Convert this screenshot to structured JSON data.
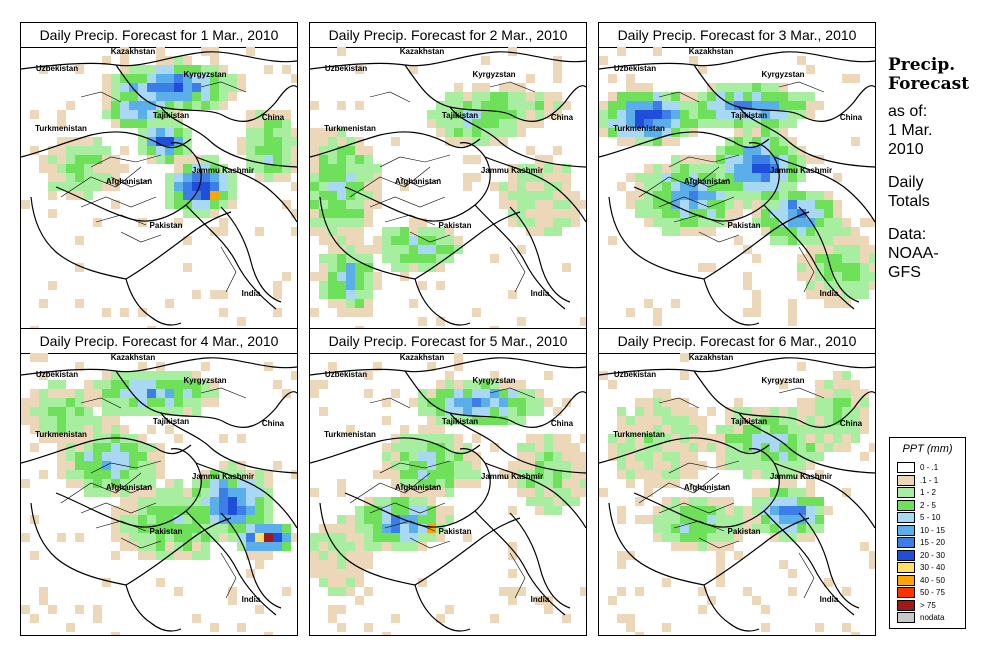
{
  "title_prefix": "Daily Precip. Forecast for",
  "panels": [
    {
      "date": "1 Mar., 2010",
      "title": "Daily Precip. Forecast for  1 Mar., 2010"
    },
    {
      "date": "2 Mar., 2010",
      "title": "Daily Precip. Forecast for  2 Mar., 2010"
    },
    {
      "date": "3 Mar., 2010",
      "title": "Daily Precip. Forecast for  3 Mar., 2010"
    },
    {
      "date": "4 Mar., 2010",
      "title": "Daily Precip. Forecast for  4 Mar., 2010"
    },
    {
      "date": "5 Mar., 2010",
      "title": "Daily Precip. Forecast for  5 Mar., 2010"
    },
    {
      "date": "6 Mar., 2010",
      "title": "Daily Precip. Forecast for  6 Mar., 2010"
    }
  ],
  "map_labels": {
    "kazakhstan": "Kazakhstan",
    "uzbekistan": "Uzbekistan",
    "kyrgyzstan": "Kyrgyzstan",
    "tajikistan": "Tajikistan",
    "turkmenistan": "Turkmenistan",
    "china": "China",
    "afghanistan": "Afghanistan",
    "jammu_kashmir": "Jammu Kashmir",
    "pakistan": "Pakistan",
    "india": "India"
  },
  "sidebar": {
    "title_line1": "Precip.",
    "title_line2": "Forecast",
    "asof_line1": "as of:",
    "asof_line2": "1 Mar.",
    "asof_line3": "2010",
    "period_line1": "Daily",
    "period_line2": "Totals",
    "source_line1": "Data:",
    "source_line2": "NOAA-",
    "source_line3": "GFS"
  },
  "legend": {
    "title": "PPT (mm)",
    "items": [
      {
        "label": "0 - .1",
        "color": "#ffffff"
      },
      {
        "label": ".1 - 1",
        "color": "#ecd8b8"
      },
      {
        "label": "1 - 2",
        "color": "#a8eea0"
      },
      {
        "label": "2 - 5",
        "color": "#6ee05a"
      },
      {
        "label": "5 - 10",
        "color": "#a9d8f5"
      },
      {
        "label": "10 - 15",
        "color": "#5aaeea"
      },
      {
        "label": "15 - 20",
        "color": "#3c7ee8"
      },
      {
        "label": "20 - 30",
        "color": "#1f4fd8"
      },
      {
        "label": "30 - 40",
        "color": "#ffe066"
      },
      {
        "label": "40 - 50",
        "color": "#ffa500"
      },
      {
        "label": "50 - 75",
        "color": "#ff3300"
      },
      {
        "label": "> 75",
        "color": "#a01818"
      },
      {
        "label": "nodata",
        "color": "#c8c8c8"
      }
    ]
  }
}
